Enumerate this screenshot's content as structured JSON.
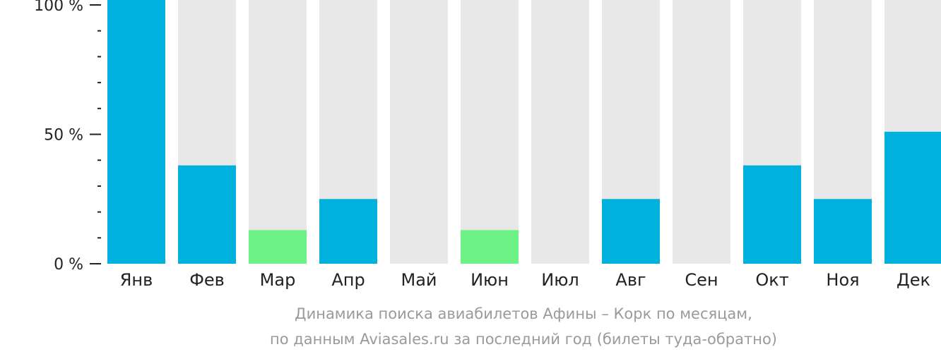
{
  "chart_data": {
    "type": "bar",
    "categories": [
      "Янв",
      "Фев",
      "Мар",
      "Апр",
      "Май",
      "Июн",
      "Июл",
      "Авг",
      "Сен",
      "Окт",
      "Ноя",
      "Дек"
    ],
    "values": [
      100,
      38,
      13,
      25,
      0,
      13,
      0,
      25,
      0,
      38,
      25,
      51
    ],
    "highlight": [
      false,
      false,
      true,
      false,
      false,
      true,
      false,
      false,
      false,
      false,
      false,
      false
    ],
    "ylim": [
      0,
      100
    ],
    "y_ticks": [
      {
        "value": 100,
        "label": "100 %"
      },
      {
        "value": 50,
        "label": "50 %"
      },
      {
        "value": 0,
        "label": "0 %"
      }
    ],
    "y_minor_step": 10,
    "caption_line1": "Динамика поиска авиабилетов Афины – Корк по месяцам,",
    "caption_line2": "по данным Aviasales.ru за последний год (билеты туда-обратно)",
    "colors": {
      "bar": "#00b0dd",
      "bar_highlight": "#6cf285",
      "track": "#e8e8e8",
      "axis": "#222222"
    }
  }
}
